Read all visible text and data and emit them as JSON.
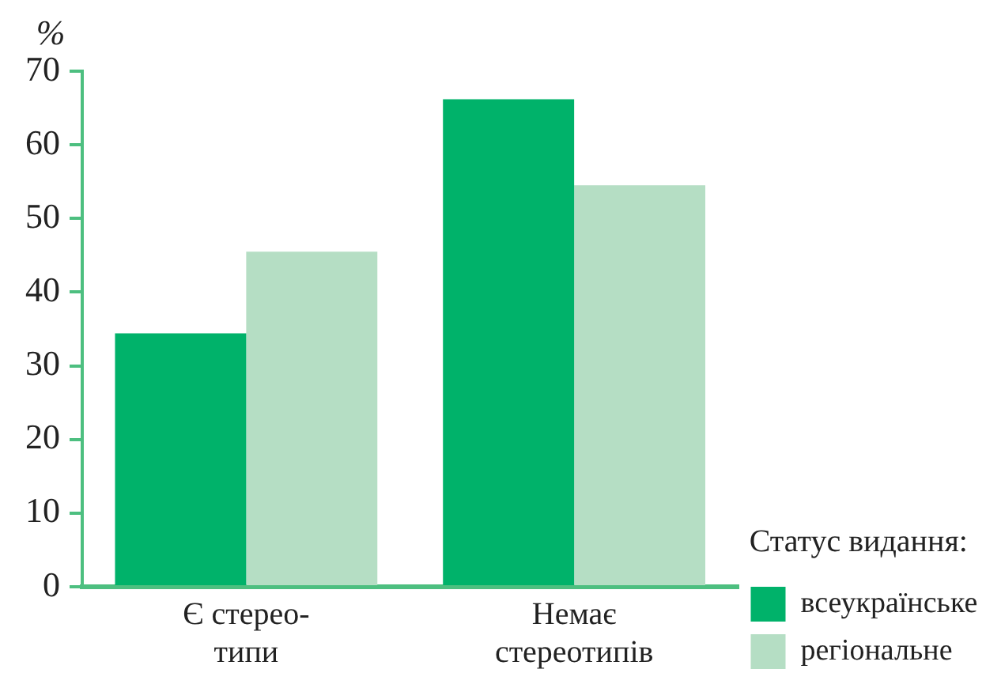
{
  "chart_data": {
    "type": "bar",
    "ylabel": "%",
    "categories": [
      "Є стерео-\nтипи",
      "Немає\nстереотипів"
    ],
    "series": [
      {
        "name": "всеукраїнське",
        "color": "#00b26a",
        "values": [
          34.4,
          66.2
        ]
      },
      {
        "name": "регіональне",
        "color": "#b5dec4",
        "values": [
          45.5,
          54.5
        ]
      }
    ],
    "ylim": [
      0,
      70
    ],
    "yticks": [
      0,
      10,
      20,
      30,
      40,
      50,
      60,
      70
    ],
    "grid": false,
    "legend": "bottom right",
    "legend_title": "Статус видання:"
  }
}
